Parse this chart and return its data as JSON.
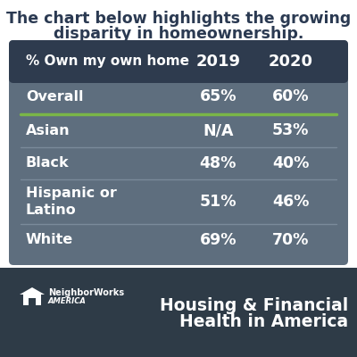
{
  "title_line1": "The chart below highlights the growing",
  "title_line2": "disparity in homeownership.",
  "title_fontsize": 12.5,
  "title_color": "#2b3a52",
  "table_bg_color": "#5e6e7e",
  "header_bg_color": "#2e3b4e",
  "separator_color": "#7a8a9a",
  "green_line_color": "#7ab648",
  "header_label": "% Own my own home",
  "col1": "2019",
  "col2": "2020",
  "rows": [
    {
      "label": "Overall",
      "v2019": "65%",
      "v2020": "60%",
      "green_below": true
    },
    {
      "label": "Asian",
      "v2019": "N/A",
      "v2020": "53%",
      "green_below": false
    },
    {
      "label": "Black",
      "v2019": "48%",
      "v2020": "40%",
      "green_below": false
    },
    {
      "label": "Hispanic or\nLatino",
      "v2019": "51%",
      "v2020": "46%",
      "green_below": false
    },
    {
      "label": "White",
      "v2019": "69%",
      "v2020": "70%",
      "green_below": false
    }
  ],
  "footer_bg_color": "#2e3b47",
  "footer_text_line1": "Housing & Financial",
  "footer_text_line2": "Health in America",
  "footer_text_color": "#ffffff",
  "footer_text_fontsize": 13.5,
  "white_color": "#ffffff",
  "text_fontsize": 11.5,
  "header_fontsize": 11,
  "value_fontsize": 12.5,
  "nw_text": "NeighborWorks",
  "nw_sub": "AMERICA",
  "nw_fontsize": 7,
  "bg_color": "#ffffff"
}
